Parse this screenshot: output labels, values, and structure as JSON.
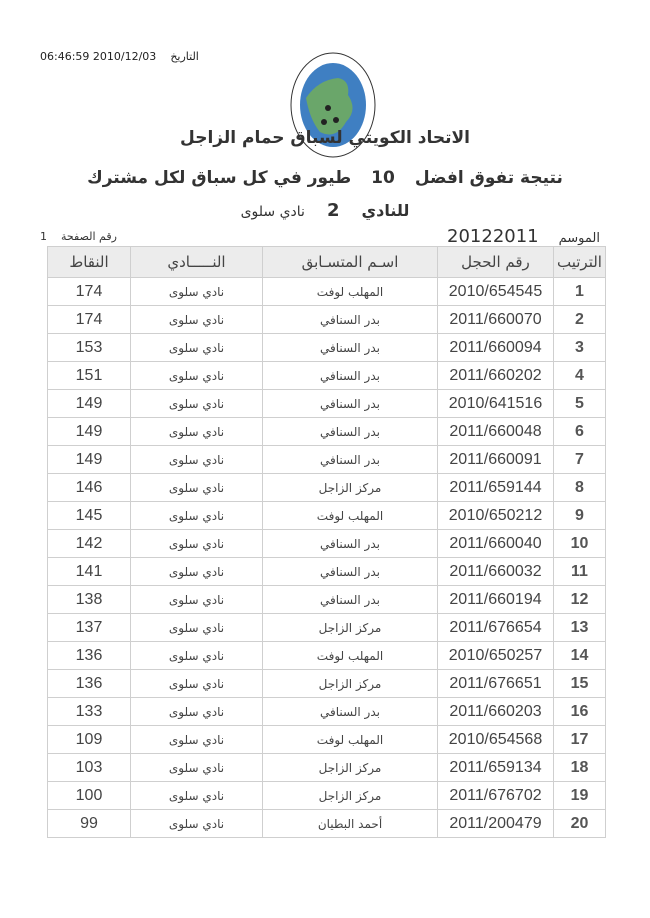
{
  "header": {
    "date_label": "التاريخ",
    "date_value": "06:46:59 2010/12/03",
    "logo_text": "الاتحاد الكويتي لسباق حمام الزاجل - KUWAIT FEDERATION FOR RACING PIGEON",
    "title": "الاتحاد الكويتي لسباق حمام الزاجل",
    "subtitle_a": "نتيجة تفوق افضل",
    "subtitle_num": "10",
    "subtitle_b": "طيور في كل سباق لكل مشترك",
    "club_label": "للنادي",
    "club_num": "2",
    "club_name": "نادي سلوى",
    "season_label": "الموسم",
    "season_value": "20122011",
    "page_label": "رقم الصفحة",
    "page_value": "1"
  },
  "table": {
    "columns": [
      "الترتيب",
      "رقم الحجل",
      "اسـم المتسـابق",
      "النـــــادي",
      "النقاط"
    ],
    "rows": [
      [
        "1",
        "2010/654545",
        "المهلب لوفت",
        "نادي سلوى",
        "174"
      ],
      [
        "2",
        "2011/660070",
        "بدر السنافي",
        "نادي سلوى",
        "174"
      ],
      [
        "3",
        "2011/660094",
        "بدر السنافي",
        "نادي سلوى",
        "153"
      ],
      [
        "4",
        "2011/660202",
        "بدر السنافي",
        "نادي سلوى",
        "151"
      ],
      [
        "5",
        "2010/641516",
        "بدر السنافي",
        "نادي سلوى",
        "149"
      ],
      [
        "6",
        "2011/660048",
        "بدر السنافي",
        "نادي سلوى",
        "149"
      ],
      [
        "7",
        "2011/660091",
        "بدر السنافي",
        "نادي سلوى",
        "149"
      ],
      [
        "8",
        "2011/659144",
        "مركز الزاجل",
        "نادي سلوى",
        "146"
      ],
      [
        "9",
        "2010/650212",
        "المهلب لوفت",
        "نادي سلوى",
        "145"
      ],
      [
        "10",
        "2011/660040",
        "بدر السنافي",
        "نادي سلوى",
        "142"
      ],
      [
        "11",
        "2011/660032",
        "بدر السنافي",
        "نادي سلوى",
        "141"
      ],
      [
        "12",
        "2011/660194",
        "بدر السنافي",
        "نادي سلوى",
        "138"
      ],
      [
        "13",
        "2011/676654",
        "مركز الزاجل",
        "نادي سلوى",
        "137"
      ],
      [
        "14",
        "2010/650257",
        "المهلب لوفت",
        "نادي سلوى",
        "136"
      ],
      [
        "15",
        "2011/676651",
        "مركز الزاجل",
        "نادي سلوى",
        "136"
      ],
      [
        "16",
        "2011/660203",
        "بدر السنافي",
        "نادي سلوى",
        "133"
      ],
      [
        "17",
        "2010/654568",
        "المهلب لوفت",
        "نادي سلوى",
        "109"
      ],
      [
        "18",
        "2011/659134",
        "مركز الزاجل",
        "نادي سلوى",
        "103"
      ],
      [
        "19",
        "2011/676702",
        "مركز الزاجل",
        "نادي سلوى",
        "100"
      ],
      [
        "20",
        "2011/200479",
        "أحمد البطيان",
        "نادي سلوى",
        "99"
      ]
    ]
  }
}
